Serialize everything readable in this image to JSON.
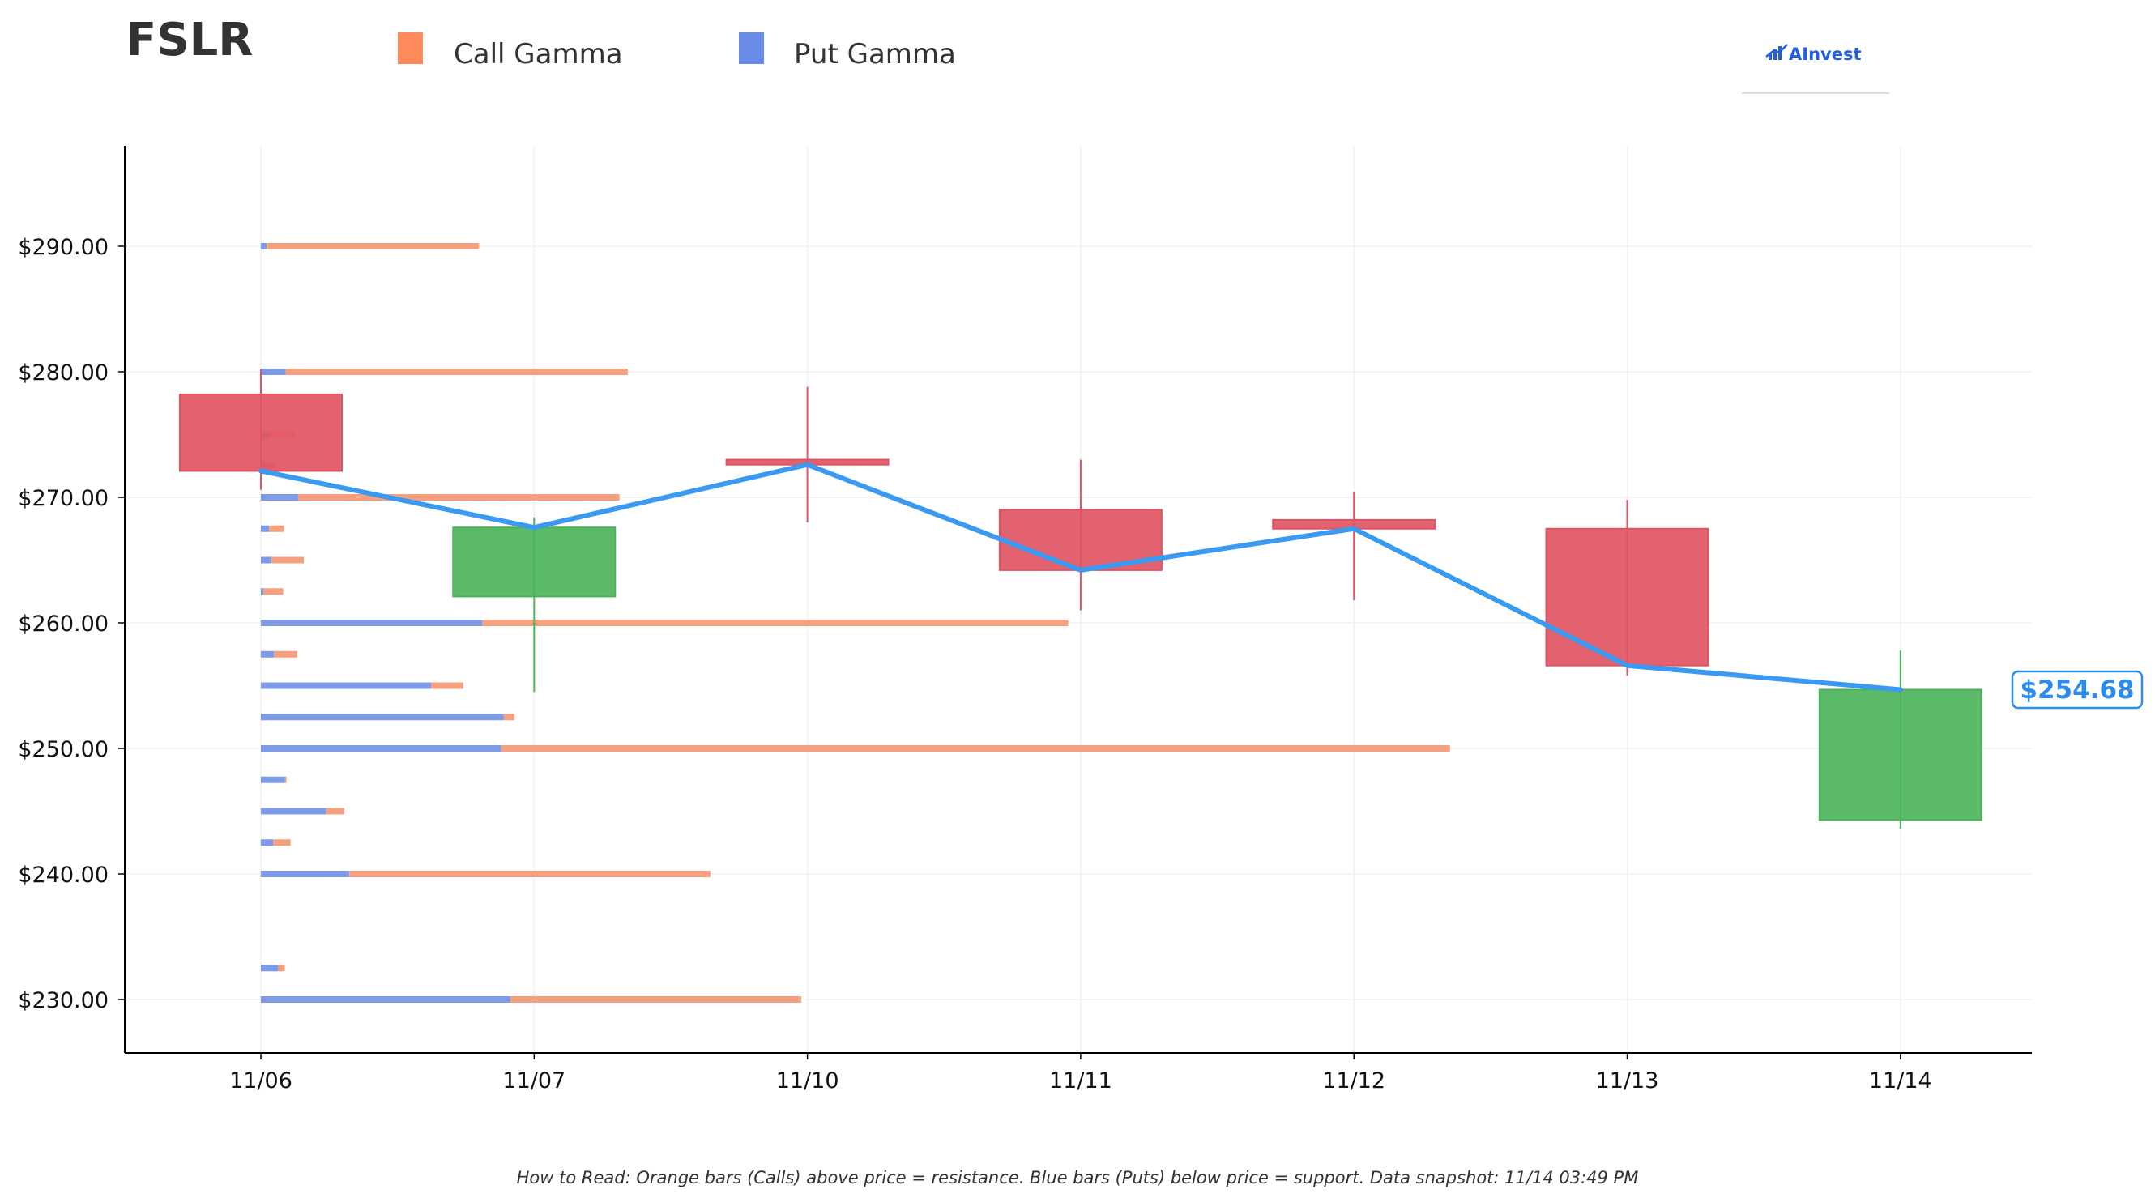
{
  "ticker": "FSLR",
  "legend": [
    {
      "label": "Call Gamma",
      "color": "#ff8a5c"
    },
    {
      "label": "Put Gamma",
      "color": "#6b8be8"
    }
  ],
  "brand": {
    "name": "AInvest",
    "color": "#1f5fe0"
  },
  "footnote": "How to Read: Orange bars (Calls) above price = resistance. Blue bars (Puts) below price = support. Data snapshot: 11/14 03:49 PM",
  "colors": {
    "up": "#4cb45a",
    "down": "#e05563",
    "price_line": "#3a99f0",
    "call": "#f5a07e",
    "put": "#7e9be8"
  },
  "chart_data": {
    "type": "candlestick",
    "x": [
      "11/06",
      "11/07",
      "11/10",
      "11/11",
      "11/12",
      "11/13",
      "11/14"
    ],
    "ylim": [
      226,
      298
    ],
    "yticks": [
      230,
      240,
      250,
      260,
      270,
      280,
      290
    ],
    "ytick_labels": [
      "$230.00",
      "$240.00",
      "$250.00",
      "$260.00",
      "$270.00",
      "$280.00",
      "$290.00"
    ],
    "candles": [
      {
        "date": "11/06",
        "open": 278.2,
        "high": 280.2,
        "low": 270.6,
        "close": 272.1
      },
      {
        "date": "11/07",
        "open": 262.1,
        "high": 268.4,
        "low": 254.5,
        "close": 267.6
      },
      {
        "date": "11/10",
        "open": 273.0,
        "high": 278.8,
        "low": 268.0,
        "close": 272.6
      },
      {
        "date": "11/11",
        "open": 269.0,
        "high": 273.0,
        "low": 261.0,
        "close": 264.2
      },
      {
        "date": "11/12",
        "open": 268.2,
        "high": 270.4,
        "low": 261.8,
        "close": 267.5
      },
      {
        "date": "11/13",
        "open": 267.5,
        "high": 269.8,
        "low": 255.8,
        "close": 256.6
      },
      {
        "date": "11/14",
        "open": 244.3,
        "high": 257.8,
        "low": 243.6,
        "close": 254.68
      }
    ],
    "price_line": {
      "name": "Close",
      "values": [
        272.1,
        267.6,
        272.6,
        264.2,
        267.5,
        256.6,
        254.68
      ]
    },
    "last_price_label": "$254.68",
    "gamma_bars": {
      "strikes": [
        290,
        280,
        275,
        272.5,
        270,
        267.5,
        265,
        262.5,
        260,
        257.5,
        255,
        252.5,
        250,
        247.5,
        245,
        242.5,
        240,
        232.5,
        230
      ],
      "put": [
        0.7,
        3.0,
        1.0,
        0.7,
        4.5,
        1.0,
        1.3,
        0.3,
        26.8,
        1.6,
        20.6,
        29.4,
        29.1,
        2.9,
        7.9,
        1.5,
        10.7,
        2.1,
        30.2
      ],
      "call": [
        25.7,
        41.4,
        3.0,
        1.0,
        38.9,
        1.8,
        3.9,
        2.4,
        70.9,
        2.8,
        3.9,
        1.3,
        114.8,
        0.2,
        2.2,
        2.1,
        43.7,
        0.8,
        35.2
      ]
    }
  }
}
